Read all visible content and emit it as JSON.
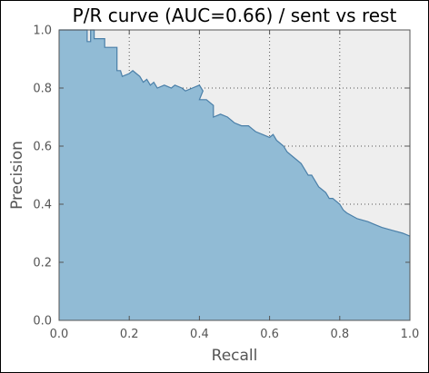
{
  "colors": {
    "plot_background": "#eeeeee",
    "area_fill": "#91bbd5",
    "area_edge": "#4a7fa8",
    "tick_text": "#555555",
    "title_text": "#000000"
  },
  "chart_data": {
    "type": "area",
    "title": "P/R curve (AUC=0.66) / sent vs rest",
    "xlabel": "Recall",
    "ylabel": "Precision",
    "xlim": [
      0.0,
      1.0
    ],
    "ylim": [
      0.0,
      1.0
    ],
    "x_ticks": [
      "0.0",
      "0.2",
      "0.4",
      "0.6",
      "0.8",
      "1.0"
    ],
    "y_ticks": [
      "0.0",
      "0.2",
      "0.4",
      "0.6",
      "0.8",
      "1.0"
    ],
    "grid": true,
    "legend": "none",
    "series": [
      {
        "x": [
          0.0,
          0.08,
          0.08,
          0.09,
          0.09,
          0.1,
          0.1,
          0.13,
          0.13,
          0.165,
          0.165,
          0.175,
          0.18,
          0.2,
          0.21,
          0.22,
          0.23,
          0.24,
          0.25,
          0.26,
          0.27,
          0.28,
          0.3,
          0.32,
          0.33,
          0.35,
          0.36,
          0.38,
          0.4,
          0.41,
          0.4,
          0.42,
          0.44,
          0.44,
          0.46,
          0.48,
          0.5,
          0.52,
          0.54,
          0.55,
          0.56,
          0.58,
          0.6,
          0.61,
          0.62,
          0.64,
          0.65,
          0.66,
          0.68,
          0.69,
          0.7,
          0.71,
          0.72,
          0.73,
          0.74,
          0.75,
          0.76,
          0.77,
          0.78,
          0.8,
          0.81,
          0.82,
          0.85,
          0.88,
          0.9,
          0.92,
          0.95,
          0.98,
          1.0
        ],
        "y": [
          1.0,
          1.0,
          0.96,
          0.96,
          1.0,
          1.0,
          0.97,
          0.97,
          0.94,
          0.94,
          0.86,
          0.86,
          0.84,
          0.85,
          0.86,
          0.85,
          0.84,
          0.82,
          0.83,
          0.81,
          0.82,
          0.8,
          0.81,
          0.8,
          0.81,
          0.8,
          0.79,
          0.8,
          0.81,
          0.79,
          0.76,
          0.76,
          0.74,
          0.7,
          0.71,
          0.7,
          0.68,
          0.67,
          0.67,
          0.66,
          0.65,
          0.64,
          0.63,
          0.64,
          0.62,
          0.6,
          0.58,
          0.57,
          0.55,
          0.54,
          0.52,
          0.5,
          0.5,
          0.48,
          0.46,
          0.45,
          0.44,
          0.42,
          0.42,
          0.4,
          0.38,
          0.37,
          0.35,
          0.34,
          0.33,
          0.32,
          0.31,
          0.3,
          0.29
        ]
      }
    ]
  }
}
